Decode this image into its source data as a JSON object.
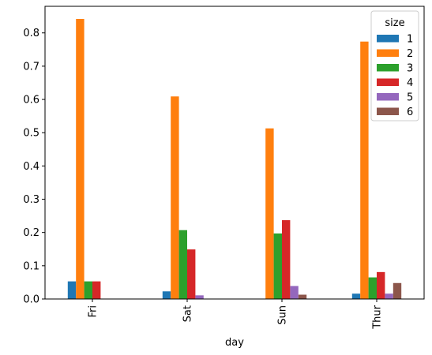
{
  "chart_data": {
    "type": "bar",
    "xlabel": "day",
    "ylabel": "",
    "categories": [
      "Fri",
      "Sat",
      "Sun",
      "Thur"
    ],
    "ylim": [
      0,
      0.88
    ],
    "yticks": [
      "0.0",
      "0.1",
      "0.2",
      "0.3",
      "0.4",
      "0.5",
      "0.6",
      "0.7",
      "0.8"
    ],
    "grid": false,
    "legend": {
      "title": "size",
      "placement": "top-right"
    },
    "series": [
      {
        "name": "1",
        "color": "#1f77b4",
        "values": [
          0.053,
          0.023,
          0.0,
          0.016
        ]
      },
      {
        "name": "2",
        "color": "#ff7f0e",
        "values": [
          0.842,
          0.609,
          0.513,
          0.774
        ]
      },
      {
        "name": "3",
        "color": "#2ca02c",
        "values": [
          0.053,
          0.207,
          0.197,
          0.065
        ]
      },
      {
        "name": "4",
        "color": "#d62728",
        "values": [
          0.053,
          0.149,
          0.237,
          0.081
        ]
      },
      {
        "name": "5",
        "color": "#9467bd",
        "values": [
          0.0,
          0.011,
          0.039,
          0.016
        ]
      },
      {
        "name": "6",
        "color": "#8c564b",
        "values": [
          0.0,
          0.0,
          0.013,
          0.048
        ]
      }
    ]
  }
}
